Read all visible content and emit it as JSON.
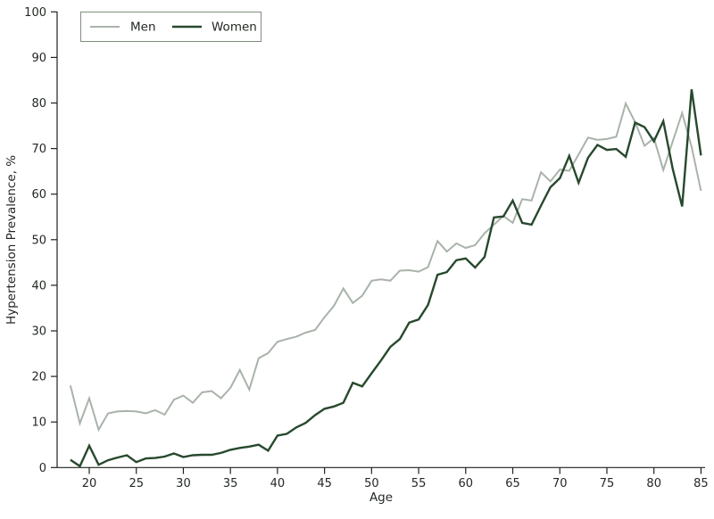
{
  "chart_data": {
    "type": "line",
    "title": "",
    "xlabel": "Age",
    "ylabel": "Hypertension Prevalence, %",
    "x_range": [
      16.5,
      86.0
    ],
    "y_range": [
      0,
      100
    ],
    "xticks": [
      20,
      25,
      30,
      35,
      40,
      45,
      50,
      55,
      60,
      65,
      70,
      75,
      80,
      85
    ],
    "yticks": [
      0,
      10,
      20,
      30,
      40,
      50,
      60,
      70,
      80,
      90,
      100
    ],
    "grid": false,
    "legend_position": "top-left",
    "x": [
      18,
      19,
      20,
      21,
      22,
      23,
      24,
      25,
      26,
      27,
      28,
      29,
      30,
      31,
      32,
      33,
      34,
      35,
      36,
      37,
      38,
      39,
      40,
      41,
      42,
      43,
      44,
      45,
      46,
      47,
      48,
      49,
      50,
      51,
      52,
      53,
      54,
      55,
      56,
      57,
      58,
      59,
      60,
      61,
      62,
      63,
      64,
      65,
      66,
      67,
      68,
      69,
      70,
      71,
      72,
      73,
      74,
      75,
      76,
      77,
      78,
      79,
      80,
      81,
      82,
      83,
      84,
      85
    ],
    "series": [
      {
        "name": "Men",
        "color": "#a9b3aa",
        "stroke_width": 2,
        "values": [
          18.0,
          9.7,
          15.2,
          8.3,
          11.9,
          12.3,
          12.4,
          12.3,
          11.9,
          12.6,
          11.6,
          14.9,
          15.8,
          14.2,
          16.5,
          16.8,
          15.2,
          17.5,
          21.4,
          17.1,
          24.0,
          25.1,
          27.6,
          28.2,
          28.7,
          29.6,
          30.2,
          33.0,
          35.5,
          39.3,
          36.1,
          37.7,
          41.0,
          41.3,
          41.0,
          43.2,
          43.3,
          43.0,
          44.0,
          49.7,
          47.4,
          49.2,
          48.2,
          48.8,
          51.4,
          53.3,
          55.2,
          53.7,
          58.9,
          58.6,
          64.8,
          62.8,
          65.4,
          65.1,
          68.7,
          72.4,
          71.9,
          72.1,
          72.6,
          79.9,
          75.8,
          70.6,
          72.3,
          65.3,
          71.6,
          77.8,
          70.4,
          60.7
        ]
      },
      {
        "name": "Women",
        "color": "#27492d",
        "stroke_width": 2.4,
        "values": [
          1.7,
          0.3,
          4.8,
          0.6,
          1.6,
          2.2,
          2.7,
          1.2,
          2.0,
          2.1,
          2.4,
          3.1,
          2.3,
          2.7,
          2.8,
          2.8,
          3.2,
          3.9,
          4.3,
          4.6,
          5.0,
          3.7,
          7.0,
          7.4,
          8.8,
          9.8,
          11.5,
          12.9,
          13.4,
          14.2,
          18.6,
          17.8,
          20.7,
          23.5,
          26.5,
          28.2,
          31.8,
          32.5,
          35.7,
          42.3,
          42.9,
          45.5,
          45.9,
          43.9,
          46.2,
          54.9,
          55.1,
          58.6,
          53.7,
          53.3,
          57.5,
          61.5,
          63.5,
          68.4,
          62.5,
          68.0,
          70.8,
          69.7,
          69.9,
          68.2,
          75.7,
          74.7,
          71.6,
          76.0,
          65.5,
          57.3,
          83.0,
          68.5
        ]
      }
    ]
  },
  "axes": {
    "x_label": "Age",
    "y_label": "Hypertension Prevalence, %"
  },
  "legend": {
    "items": [
      {
        "label": "Men"
      },
      {
        "label": "Women"
      }
    ]
  },
  "colors": {
    "background": "#ffffff",
    "axis": "#1d221d",
    "text": "#232823",
    "legend_border": "#7f8d7f",
    "men_line": "#a9b3aa",
    "women_line": "#27492d"
  }
}
